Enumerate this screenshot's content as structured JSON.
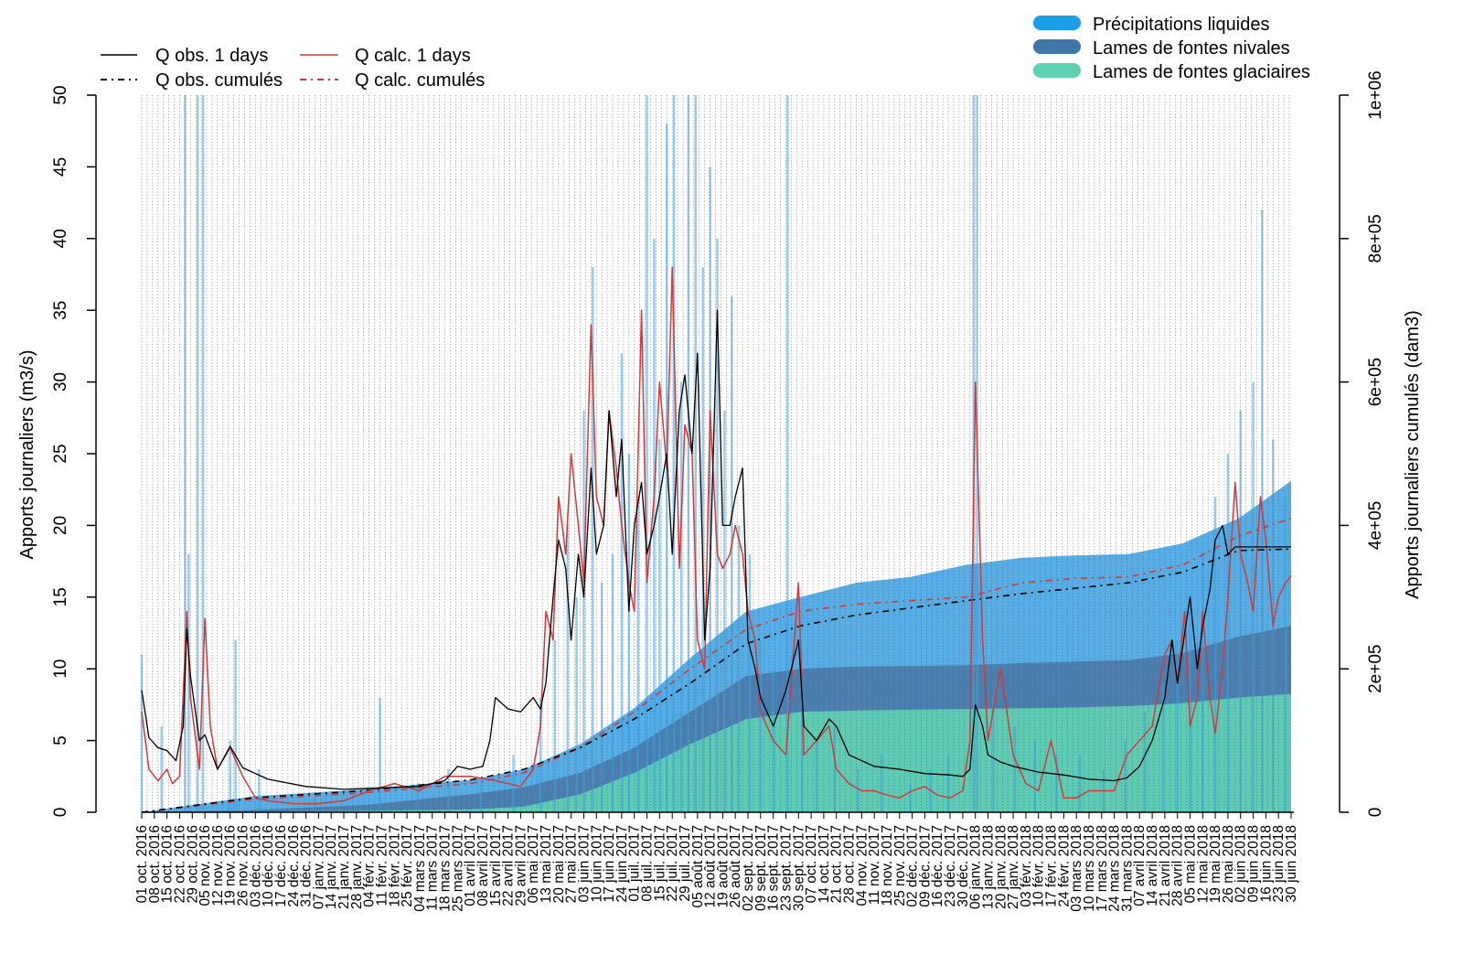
{
  "chart_data": {
    "type": "area",
    "title": "",
    "ylabel": "Apports journaliers (m3/s)",
    "ylabel_right": "Apports journaliers cumulés (dam3)",
    "ylim": [
      0,
      50
    ],
    "ylim_right": [
      0,
      1000000
    ],
    "y_ticks": [
      "0",
      "5",
      "10",
      "15",
      "20",
      "25",
      "30",
      "35",
      "40",
      "45",
      "50"
    ],
    "y_right_ticks": [
      "0",
      "2e+05",
      "4e+05",
      "6e+05",
      "8e+05",
      "1e+06"
    ],
    "x_range": [
      "2016-10-01",
      "2018-06-30"
    ],
    "x_tick_labels": [
      "01 oct. 2016",
      "08 oct. 2016",
      "15 oct. 2016",
      "22 oct. 2016",
      "29 oct. 2016",
      "05 nov. 2016",
      "12 nov. 2016",
      "19 nov. 2016",
      "26 nov. 2016",
      "03 déc. 2016",
      "10 déc. 2016",
      "17 déc. 2016",
      "24 déc. 2016",
      "31 déc. 2016",
      "07 janv. 2017",
      "14 janv. 2017",
      "21 janv. 2017",
      "28 janv. 2017",
      "04 févr. 2017",
      "11 févr. 2017",
      "18 févr. 2017",
      "25 févr. 2017",
      "04 mars 2017",
      "11 mars 2017",
      "18 mars 2017",
      "25 mars 2017",
      "01 avril 2017",
      "08 avril 2017",
      "15 avril 2017",
      "22 avril 2017",
      "29 avril 2017",
      "06 mai 2017",
      "13 mai 2017",
      "20 mai 2017",
      "27 mai 2017",
      "03 juin 2017",
      "10 juin 2017",
      "17 juin 2017",
      "24 juin 2017",
      "01 juil. 2017",
      "08 juil. 2017",
      "15 juil. 2017",
      "22 juil. 2017",
      "29 juil. 2017",
      "05 août 2017",
      "12 août 2017",
      "19 août 2017",
      "26 août 2017",
      "02 sept. 2017",
      "09 sept. 2017",
      "16 sept. 2017",
      "23 sept. 2017",
      "30 sept. 2017",
      "07 oct. 2017",
      "14 oct. 2017",
      "21 oct. 2017",
      "28 oct. 2017",
      "04 nov. 2017",
      "11 nov. 2017",
      "18 nov. 2017",
      "25 nov. 2017",
      "02 déc. 2017",
      "09 déc. 2017",
      "16 déc. 2017",
      "23 déc. 2017",
      "30 déc. 2017",
      "06 janv. 2018",
      "13 janv. 2018",
      "20 janv. 2018",
      "27 janv. 2018",
      "03 févr. 2018",
      "10 févr. 2018",
      "17 févr. 2018",
      "24 févr. 2018",
      "03 mars 2018",
      "10 mars 2018",
      "17 mars 2018",
      "24 mars 2018",
      "31 mars 2018",
      "07 avril 2018",
      "14 avril 2018",
      "21 avril 2018",
      "28 avril 2018",
      "05 mai 2018",
      "12 mai 2018",
      "19 mai 2018",
      "26 mai 2018",
      "02 juin 2018",
      "09 juin 2018",
      "16 juin 2018",
      "23 juin 2018",
      "30 juin 2018"
    ],
    "legend_lines": [
      "Q obs.  1 days",
      "Q calc.  1 days",
      "Q obs. cumulés",
      "Q calc. cumulés"
    ],
    "legend_fills": [
      "Précipitations liquides",
      "Lames de fontes nivales",
      "Lames de fontes glaciaires"
    ],
    "colors": {
      "q_obs": "#000000",
      "q_calc": "#d03a3a",
      "precip": "#3a9fe0",
      "nival": "#4a7aaa",
      "glaciaire": "#5fd1b4",
      "gridline": "#555555"
    },
    "series": [
      {
        "name": "Q obs.  1 days",
        "axis": "left",
        "x": [
          "2016-10-01",
          "2016-10-05",
          "2016-10-10",
          "2016-10-15",
          "2016-10-20",
          "2016-10-24",
          "2016-10-26",
          "2016-10-28",
          "2016-11-02",
          "2016-11-05",
          "2016-11-12",
          "2016-11-19",
          "2016-11-26",
          "2016-12-10",
          "2016-12-31",
          "2017-01-21",
          "2017-02-11",
          "2017-03-04",
          "2017-03-18",
          "2017-03-25",
          "2017-04-01",
          "2017-04-08",
          "2017-04-12",
          "2017-04-15",
          "2017-04-22",
          "2017-04-29",
          "2017-05-06",
          "2017-05-10",
          "2017-05-13",
          "2017-05-17",
          "2017-05-20",
          "2017-05-24",
          "2017-05-27",
          "2017-05-31",
          "2017-06-03",
          "2017-06-07",
          "2017-06-10",
          "2017-06-14",
          "2017-06-17",
          "2017-06-21",
          "2017-06-24",
          "2017-06-28",
          "2017-07-01",
          "2017-07-05",
          "2017-07-08",
          "2017-07-12",
          "2017-07-15",
          "2017-07-19",
          "2017-07-22",
          "2017-07-26",
          "2017-07-29",
          "2017-08-02",
          "2017-08-05",
          "2017-08-09",
          "2017-08-12",
          "2017-08-16",
          "2017-08-19",
          "2017-08-23",
          "2017-08-26",
          "2017-08-30",
          "2017-09-02",
          "2017-09-06",
          "2017-09-09",
          "2017-09-16",
          "2017-09-23",
          "2017-09-30",
          "2017-10-03",
          "2017-10-10",
          "2017-10-17",
          "2017-10-21",
          "2017-10-28",
          "2017-11-11",
          "2017-11-25",
          "2017-12-09",
          "2017-12-23",
          "2017-12-30",
          "2018-01-03",
          "2018-01-06",
          "2018-01-10",
          "2018-01-13",
          "2018-01-20",
          "2018-01-27",
          "2018-02-10",
          "2018-02-24",
          "2018-03-10",
          "2018-03-24",
          "2018-03-31",
          "2018-04-07",
          "2018-04-14",
          "2018-04-21",
          "2018-04-25",
          "2018-04-28",
          "2018-05-02",
          "2018-05-05",
          "2018-05-09",
          "2018-05-12",
          "2018-05-16",
          "2018-05-19",
          "2018-05-23",
          "2018-05-26",
          "2018-05-30",
          "2018-06-02",
          "2018-06-09",
          "2018-06-16",
          "2018-06-23",
          "2018-06-30"
        ],
        "y": [
          8.5,
          5.2,
          4.5,
          4.3,
          3.6,
          6.0,
          12.8,
          9.5,
          5.0,
          5.4,
          3.0,
          4.6,
          3.1,
          2.3,
          1.8,
          1.6,
          1.7,
          1.8,
          2.2,
          3.2,
          3.0,
          3.2,
          5.0,
          8.0,
          7.2,
          7.0,
          8.0,
          7.2,
          9.0,
          15.0,
          19.0,
          17.0,
          12.0,
          18.0,
          15.0,
          24.0,
          18.0,
          20.0,
          28.0,
          22.0,
          26.0,
          14.0,
          20.0,
          23.0,
          18.0,
          20.0,
          22.0,
          25.0,
          18.0,
          28.0,
          30.5,
          25.0,
          32.0,
          12.0,
          17.0,
          35.0,
          20.0,
          20.0,
          22.0,
          24.0,
          12.0,
          10.0,
          8.0,
          6.0,
          8.5,
          12.0,
          6.0,
          5.0,
          6.5,
          6.0,
          4.0,
          3.2,
          3.0,
          2.7,
          2.6,
          2.5,
          3.0,
          7.5,
          6.0,
          4.0,
          3.5,
          3.2,
          2.8,
          2.6,
          2.3,
          2.2,
          2.4,
          3.2,
          5.0,
          8.0,
          12.0,
          9.0,
          12.5,
          15.0,
          10.0,
          13.0,
          15.5,
          19.0,
          20.0,
          18.0,
          18.5,
          18.5,
          18.5,
          18.5,
          18.5,
          18.5
        ]
      },
      {
        "name": "Q calc.  1 days",
        "axis": "left",
        "x": [
          "2016-10-01",
          "2016-10-05",
          "2016-10-10",
          "2016-10-15",
          "2016-10-18",
          "2016-10-22",
          "2016-10-26",
          "2016-10-28",
          "2016-11-02",
          "2016-11-05",
          "2016-11-08",
          "2016-11-12",
          "2016-11-19",
          "2016-11-26",
          "2016-12-03",
          "2016-12-10",
          "2016-12-24",
          "2017-01-07",
          "2017-01-21",
          "2017-02-04",
          "2017-02-18",
          "2017-03-04",
          "2017-03-18",
          "2017-04-01",
          "2017-04-15",
          "2017-04-29",
          "2017-05-06",
          "2017-05-10",
          "2017-05-13",
          "2017-05-17",
          "2017-05-20",
          "2017-05-24",
          "2017-05-27",
          "2017-05-31",
          "2017-06-03",
          "2017-06-07",
          "2017-06-10",
          "2017-06-14",
          "2017-06-17",
          "2017-06-21",
          "2017-06-24",
          "2017-06-28",
          "2017-07-01",
          "2017-07-05",
          "2017-07-08",
          "2017-07-12",
          "2017-07-15",
          "2017-07-19",
          "2017-07-22",
          "2017-07-26",
          "2017-07-29",
          "2017-08-02",
          "2017-08-05",
          "2017-08-09",
          "2017-08-12",
          "2017-08-16",
          "2017-08-19",
          "2017-08-23",
          "2017-08-26",
          "2017-08-30",
          "2017-09-02",
          "2017-09-06",
          "2017-09-09",
          "2017-09-16",
          "2017-09-23",
          "2017-09-30",
          "2017-10-03",
          "2017-10-10",
          "2017-10-17",
          "2017-10-21",
          "2017-10-28",
          "2017-11-04",
          "2017-11-11",
          "2017-11-18",
          "2017-11-25",
          "2017-12-02",
          "2017-12-09",
          "2017-12-16",
          "2017-12-23",
          "2017-12-30",
          "2018-01-03",
          "2018-01-06",
          "2018-01-10",
          "2018-01-13",
          "2018-01-20",
          "2018-01-27",
          "2018-02-03",
          "2018-02-10",
          "2018-02-17",
          "2018-02-24",
          "2018-03-03",
          "2018-03-10",
          "2018-03-17",
          "2018-03-24",
          "2018-03-31",
          "2018-04-07",
          "2018-04-14",
          "2018-04-21",
          "2018-04-25",
          "2018-04-28",
          "2018-05-02",
          "2018-05-05",
          "2018-05-09",
          "2018-05-12",
          "2018-05-16",
          "2018-05-19",
          "2018-05-23",
          "2018-05-26",
          "2018-05-30",
          "2018-06-02",
          "2018-06-06",
          "2018-06-09",
          "2018-06-13",
          "2018-06-16",
          "2018-06-20",
          "2018-06-23",
          "2018-06-27",
          "2018-06-30"
        ],
        "y": [
          7.0,
          3.0,
          2.2,
          3.0,
          2.0,
          2.5,
          14.0,
          8.0,
          3.0,
          13.5,
          6.0,
          3.0,
          4.5,
          2.5,
          1.0,
          0.8,
          0.6,
          0.6,
          0.8,
          1.5,
          2.0,
          1.5,
          2.5,
          2.5,
          2.2,
          1.8,
          3.0,
          6.0,
          14.0,
          12.0,
          22.0,
          18.0,
          25.0,
          20.0,
          16.0,
          34.0,
          22.0,
          20.0,
          28.0,
          24.0,
          20.0,
          16.0,
          14.0,
          35.0,
          16.0,
          22.0,
          30.0,
          24.0,
          38.0,
          17.0,
          27.0,
          25.0,
          12.0,
          10.0,
          28.0,
          18.0,
          17.0,
          18.0,
          20.0,
          18.0,
          14.0,
          12.0,
          7.0,
          5.0,
          4.0,
          16.0,
          4.0,
          5.0,
          6.0,
          3.0,
          2.0,
          1.5,
          1.5,
          1.2,
          1.0,
          1.5,
          1.8,
          1.2,
          1.0,
          1.5,
          5.0,
          30.0,
          12.0,
          5.0,
          10.0,
          4.0,
          2.0,
          1.5,
          5.0,
          1.0,
          1.0,
          1.5,
          1.5,
          1.5,
          4.0,
          5.0,
          6.0,
          11.0,
          12.0,
          9.0,
          14.0,
          6.0,
          8.0,
          14.0,
          8.0,
          5.5,
          10.0,
          15.0,
          23.0,
          18.0,
          16.0,
          14.0,
          22.0,
          19.0,
          13.0,
          15.0,
          16.0,
          16.5
        ]
      },
      {
        "name": "Q obs. cumulés",
        "axis": "right",
        "x": [
          "2016-10-01",
          "2016-12-01",
          "2017-02-01",
          "2017-04-01",
          "2017-05-01",
          "2017-06-01",
          "2017-07-01",
          "2017-08-01",
          "2017-09-01",
          "2017-10-01",
          "2017-11-01",
          "2017-12-01",
          "2018-01-01",
          "2018-02-01",
          "2018-03-01",
          "2018-04-01",
          "2018-05-01",
          "2018-06-01",
          "2018-06-30"
        ],
        "y": [
          0,
          20000,
          30000,
          45000,
          60000,
          90000,
          130000,
          180000,
          235000,
          260000,
          275000,
          285000,
          295000,
          305000,
          312000,
          320000,
          335000,
          365000,
          367000
        ]
      },
      {
        "name": "Q calc. cumulés",
        "axis": "right",
        "x": [
          "2016-10-01",
          "2016-12-01",
          "2017-02-01",
          "2017-04-01",
          "2017-05-01",
          "2017-06-01",
          "2017-07-01",
          "2017-08-01",
          "2017-09-01",
          "2017-10-01",
          "2017-11-01",
          "2017-12-01",
          "2018-01-01",
          "2018-02-01",
          "2018-03-01",
          "2018-04-01",
          "2018-05-01",
          "2018-06-01",
          "2018-06-30"
        ],
        "y": [
          0,
          18000,
          27000,
          40000,
          55000,
          90000,
          140000,
          200000,
          255000,
          280000,
          290000,
          295000,
          300000,
          320000,
          326000,
          328000,
          345000,
          385000,
          410000
        ]
      },
      {
        "name": "Lames de fontes glaciaires",
        "axis": "right",
        "x": [
          "2016-10-01",
          "2016-12-01",
          "2017-02-01",
          "2017-04-01",
          "2017-05-01",
          "2017-06-01",
          "2017-07-01",
          "2017-08-01",
          "2017-09-01",
          "2017-10-01",
          "2017-11-01",
          "2017-12-01",
          "2018-01-01",
          "2018-02-01",
          "2018-03-01",
          "2018-04-01",
          "2018-05-01",
          "2018-06-01",
          "2018-06-30"
        ],
        "y": [
          0,
          1000,
          2000,
          4000,
          8000,
          25000,
          55000,
          95000,
          130000,
          140000,
          142000,
          143000,
          144000,
          145000,
          146000,
          148000,
          152000,
          160000,
          165000
        ]
      },
      {
        "name": "Lames de fontes nivales",
        "axis": "right",
        "x": [
          "2016-10-01",
          "2016-12-01",
          "2017-02-01",
          "2017-04-01",
          "2017-05-01",
          "2017-06-01",
          "2017-07-01",
          "2017-08-01",
          "2017-09-01",
          "2017-10-01",
          "2017-11-01",
          "2017-12-01",
          "2018-01-01",
          "2018-02-01",
          "2018-03-01",
          "2018-04-01",
          "2018-05-01",
          "2018-06-01",
          "2018-06-30"
        ],
        "y": [
          0,
          3000,
          10000,
          25000,
          35000,
          55000,
          90000,
          140000,
          190000,
          200000,
          203000,
          204000,
          205000,
          208000,
          210000,
          212000,
          222000,
          245000,
          260000
        ]
      },
      {
        "name": "Précipitations liquides",
        "axis": "right",
        "x": [
          "2016-10-01",
          "2016-12-01",
          "2017-02-01",
          "2017-04-01",
          "2017-05-01",
          "2017-06-01",
          "2017-07-01",
          "2017-08-01",
          "2017-09-01",
          "2017-10-01",
          "2017-11-01",
          "2017-12-01",
          "2018-01-01",
          "2018-02-01",
          "2018-03-01",
          "2018-04-01",
          "2018-05-01",
          "2018-06-01",
          "2018-06-30"
        ],
        "y": [
          0,
          22000,
          32000,
          45000,
          60000,
          95000,
          145000,
          215000,
          280000,
          300000,
          320000,
          328000,
          345000,
          355000,
          358000,
          360000,
          375000,
          410000,
          462000
        ]
      }
    ],
    "precip_bars": {
      "name": "Précipitations liquides",
      "axis": "left",
      "x": [
        "2016-10-01",
        "2016-10-12",
        "2016-10-25",
        "2016-10-27",
        "2016-11-01",
        "2016-11-04",
        "2016-11-19",
        "2016-11-22",
        "2016-12-05",
        "2017-01-05",
        "2017-02-10",
        "2017-03-03",
        "2017-03-20",
        "2017-04-07",
        "2017-04-25",
        "2017-05-10",
        "2017-05-18",
        "2017-05-25",
        "2017-05-30",
        "2017-06-03",
        "2017-06-08",
        "2017-06-13",
        "2017-06-19",
        "2017-06-24",
        "2017-06-28",
        "2017-07-03",
        "2017-07-08",
        "2017-07-12",
        "2017-07-15",
        "2017-07-19",
        "2017-07-23",
        "2017-07-27",
        "2017-07-31",
        "2017-08-04",
        "2017-08-08",
        "2017-08-12",
        "2017-08-16",
        "2017-08-20",
        "2017-08-24",
        "2017-08-28",
        "2017-09-03",
        "2017-09-09",
        "2017-09-16",
        "2017-09-24",
        "2017-10-02",
        "2017-10-10",
        "2017-10-20",
        "2017-11-02",
        "2017-11-15",
        "2017-12-01",
        "2017-12-12",
        "2017-12-22",
        "2018-01-05",
        "2018-01-07",
        "2018-01-16",
        "2018-01-28",
        "2018-02-08",
        "2018-02-20",
        "2018-03-05",
        "2018-03-18",
        "2018-03-30",
        "2018-04-10",
        "2018-04-20",
        "2018-04-28",
        "2018-05-05",
        "2018-05-12",
        "2018-05-19",
        "2018-05-26",
        "2018-06-02",
        "2018-06-09",
        "2018-06-14",
        "2018-06-20",
        "2018-06-27"
      ],
      "y": [
        11,
        6,
        50,
        18,
        50,
        50,
        5,
        12,
        3,
        1,
        8,
        2,
        3,
        2,
        4,
        8,
        12,
        20,
        15,
        28,
        38,
        16,
        18,
        32,
        25,
        22,
        50,
        40,
        26,
        48,
        50,
        30,
        50,
        50,
        38,
        45,
        40,
        28,
        36,
        20,
        18,
        12,
        10,
        50,
        8,
        5,
        6,
        3,
        4,
        2,
        3,
        4,
        50,
        50,
        8,
        6,
        5,
        4,
        4,
        3,
        5,
        7,
        9,
        12,
        15,
        18,
        22,
        25,
        28,
        30,
        42,
        26,
        22
      ]
    }
  }
}
